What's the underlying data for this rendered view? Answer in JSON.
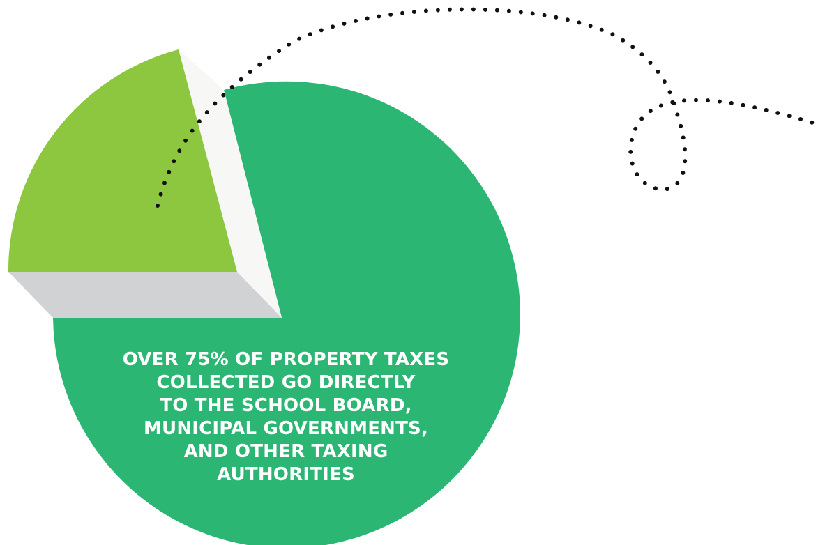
{
  "chart_data": {
    "type": "pie",
    "slices": [
      {
        "value": 75,
        "color": "#2cb673"
      },
      {
        "value": 25,
        "color": "#8dc63f"
      }
    ],
    "annotation": "OVER 75% OF PROPERTY TAXES\nCOLLECTED GO DIRECTLY\nTO THE SCHOOL BOARD,\nMUNICIPAL GOVERNMENTS,\nAND OTHER TAXING\nAUTHORITIES",
    "style": {
      "bevel_side_color": "#d0d2d3",
      "bevel_top_color": "#f7f7f5",
      "dotted_path_color": "#111111"
    }
  }
}
